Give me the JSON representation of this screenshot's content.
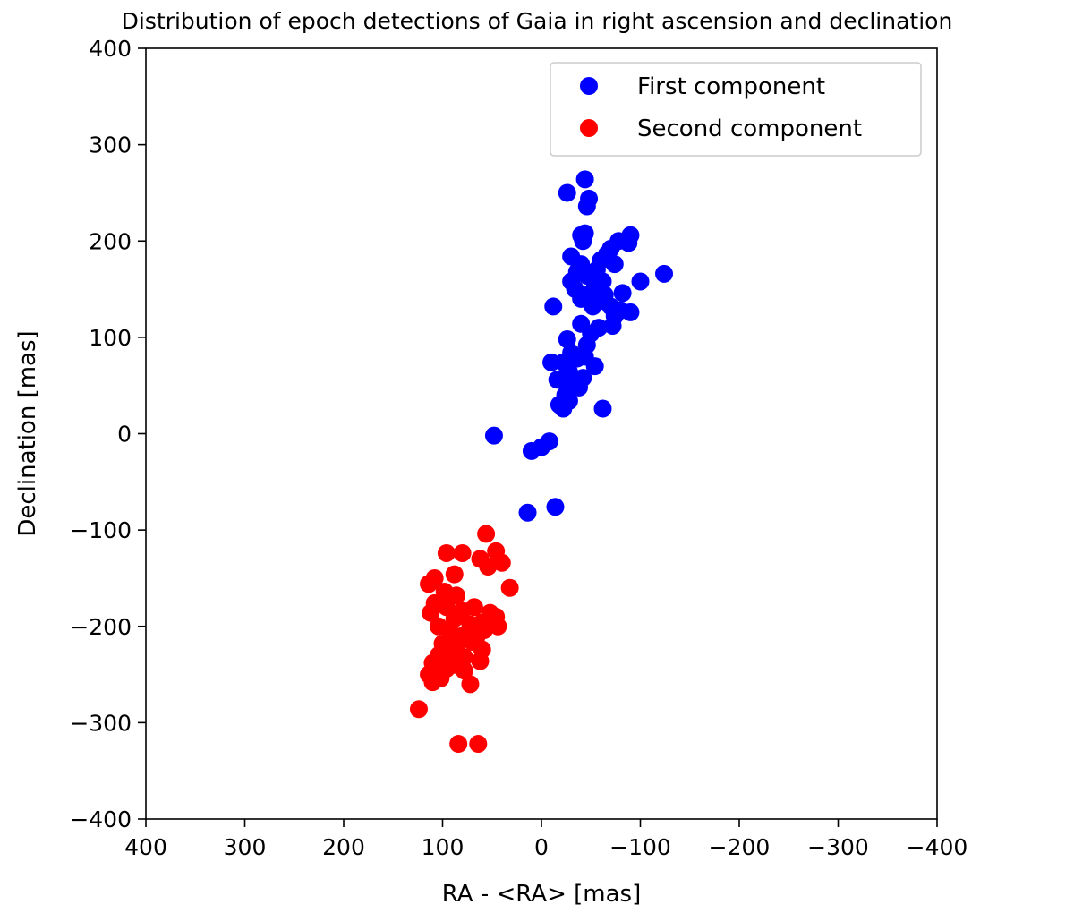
{
  "chart_data": {
    "type": "scatter",
    "title": "Distribution of epoch detections of Gaia in right ascension and declination",
    "xlabel": "RA - <RA> [mas]",
    "ylabel": "Declination [mas]",
    "xlim": [
      400,
      -400
    ],
    "ylim": [
      -400,
      400
    ],
    "x_ticks": [
      400,
      300,
      200,
      100,
      0,
      -100,
      -200,
      -300,
      -400
    ],
    "y_ticks": [
      400,
      300,
      200,
      100,
      0,
      -100,
      -200,
      -300,
      -400
    ],
    "x_tick_labels": [
      "400",
      "300",
      "200",
      "100",
      "0",
      "−100",
      "−200",
      "−300",
      "−400"
    ],
    "y_tick_labels": [
      "400",
      "300",
      "200",
      "100",
      "0",
      "−100",
      "−200",
      "−300",
      "−400"
    ],
    "grid": false,
    "legend_position": "top-right",
    "series": [
      {
        "name": "First component",
        "color": "#0000ff",
        "points": [
          [
            -44,
            264
          ],
          [
            -26,
            250
          ],
          [
            -48,
            244
          ],
          [
            -46,
            236
          ],
          [
            -44,
            208
          ],
          [
            -40,
            206
          ],
          [
            -42,
            200
          ],
          [
            -90,
            206
          ],
          [
            -78,
            200
          ],
          [
            -88,
            198
          ],
          [
            -70,
            192
          ],
          [
            -66,
            186
          ],
          [
            -30,
            184
          ],
          [
            -60,
            180
          ],
          [
            -40,
            176
          ],
          [
            -74,
            176
          ],
          [
            -56,
            170
          ],
          [
            -36,
            168
          ],
          [
            -124,
            166
          ],
          [
            -46,
            164
          ],
          [
            -100,
            158
          ],
          [
            -30,
            158
          ],
          [
            -62,
            158
          ],
          [
            -34,
            150
          ],
          [
            -54,
            152
          ],
          [
            -50,
            146
          ],
          [
            -64,
            144
          ],
          [
            -82,
            146
          ],
          [
            -40,
            140
          ],
          [
            -60,
            138
          ],
          [
            -70,
            132
          ],
          [
            -52,
            132
          ],
          [
            -80,
            128
          ],
          [
            -90,
            126
          ],
          [
            -12,
            132
          ],
          [
            -74,
            122
          ],
          [
            -40,
            114
          ],
          [
            -58,
            110
          ],
          [
            -72,
            112
          ],
          [
            -50,
            104
          ],
          [
            -26,
            98
          ],
          [
            -46,
            92
          ],
          [
            -30,
            84
          ],
          [
            -44,
            80
          ],
          [
            -36,
            78
          ],
          [
            -22,
            74
          ],
          [
            -10,
            74
          ],
          [
            -54,
            70
          ],
          [
            -28,
            64
          ],
          [
            -42,
            58
          ],
          [
            -30,
            52
          ],
          [
            -16,
            56
          ],
          [
            -38,
            48
          ],
          [
            -24,
            40
          ],
          [
            -28,
            34
          ],
          [
            -18,
            30
          ],
          [
            -22,
            26
          ],
          [
            -62,
            26
          ],
          [
            48,
            -2
          ],
          [
            -8,
            -8
          ],
          [
            0,
            -14
          ],
          [
            10,
            -18
          ],
          [
            14,
            -82
          ],
          [
            -14,
            -76
          ]
        ]
      },
      {
        "name": "Second component",
        "color": "#ff0000",
        "points": [
          [
            56,
            -104
          ],
          [
            96,
            -124
          ],
          [
            80,
            -124
          ],
          [
            62,
            -130
          ],
          [
            46,
            -122
          ],
          [
            54,
            -138
          ],
          [
            40,
            -134
          ],
          [
            88,
            -146
          ],
          [
            108,
            -150
          ],
          [
            114,
            -156
          ],
          [
            32,
            -160
          ],
          [
            98,
            -164
          ],
          [
            86,
            -168
          ],
          [
            108,
            -176
          ],
          [
            96,
            -180
          ],
          [
            68,
            -180
          ],
          [
            80,
            -184
          ],
          [
            112,
            -186
          ],
          [
            52,
            -186
          ],
          [
            46,
            -190
          ],
          [
            88,
            -192
          ],
          [
            60,
            -196
          ],
          [
            72,
            -198
          ],
          [
            104,
            -200
          ],
          [
            44,
            -200
          ],
          [
            58,
            -204
          ],
          [
            92,
            -206
          ],
          [
            80,
            -210
          ],
          [
            66,
            -212
          ],
          [
            70,
            -216
          ],
          [
            100,
            -218
          ],
          [
            86,
            -222
          ],
          [
            60,
            -224
          ],
          [
            96,
            -228
          ],
          [
            104,
            -230
          ],
          [
            78,
            -232
          ],
          [
            62,
            -236
          ],
          [
            110,
            -238
          ],
          [
            88,
            -240
          ],
          [
            96,
            -244
          ],
          [
            78,
            -246
          ],
          [
            114,
            -250
          ],
          [
            102,
            -254
          ],
          [
            110,
            -258
          ],
          [
            72,
            -260
          ],
          [
            124,
            -286
          ],
          [
            84,
            -322
          ],
          [
            64,
            -322
          ]
        ]
      }
    ]
  }
}
